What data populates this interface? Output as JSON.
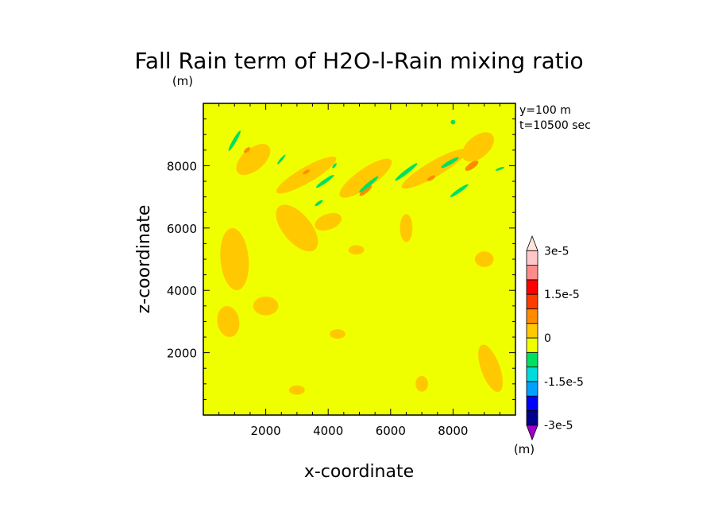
{
  "chart_data": {
    "type": "heatmap",
    "title": "Fall Rain term of H2O-l-Rain mixing ratio",
    "title_unit": "(m)",
    "xlabel": "x-coordinate",
    "ylabel": "z-coordinate",
    "xlim": [
      0,
      10000
    ],
    "ylim": [
      0,
      10000
    ],
    "x_ticks": [
      2000,
      4000,
      6000,
      8000
    ],
    "y_ticks": [
      2000,
      4000,
      6000,
      8000
    ],
    "x_tick_labels": [
      "2000",
      "4000",
      "6000",
      "8000"
    ],
    "y_tick_labels": [
      "2000",
      "4000",
      "6000",
      "8000"
    ],
    "annotations": [
      "y=100  m",
      "t=10500 sec"
    ],
    "colorbar": {
      "unit": "(m)",
      "labels": [
        "3e-5",
        "1.5e-5",
        "0",
        "-1.5e-5",
        "-3e-5"
      ],
      "levels": [
        -3e-05,
        -2.5e-05,
        -2e-05,
        -1.5e-05,
        -1e-05,
        -5e-06,
        0,
        5e-06,
        1e-05,
        1.5e-05,
        2e-05,
        2.5e-05,
        3e-05
      ],
      "colors": [
        "#a000c8",
        "#00008c",
        "#0000ff",
        "#00a0ff",
        "#00dcdc",
        "#00e060",
        "#f0ff00",
        "#ffc800",
        "#ff8c00",
        "#ff3c00",
        "#ff0000",
        "#ff8c8c",
        "#ffc8c8",
        "#ffe6dc"
      ]
    },
    "background_color": "#f0ff00",
    "positive_region_color": "#ffc800",
    "negative_band_color": "#00e060",
    "features": {
      "positive_regions": [
        {
          "x": 1600,
          "z": 8200,
          "dx": 1300,
          "dz": 700,
          "angle": 40,
          "value": 5e-06
        },
        {
          "x": 3300,
          "z": 7700,
          "dx": 2200,
          "dz": 500,
          "angle": 30,
          "value": 5e-06
        },
        {
          "x": 5200,
          "z": 7600,
          "dx": 2000,
          "dz": 600,
          "angle": 35,
          "value": 5e-06
        },
        {
          "x": 7400,
          "z": 7900,
          "dx": 2400,
          "dz": 500,
          "angle": 30,
          "value": 5e-06
        },
        {
          "x": 8800,
          "z": 8600,
          "dx": 1200,
          "dz": 700,
          "angle": 40,
          "value": 5e-06
        },
        {
          "x": 1000,
          "z": 5000,
          "dx": 900,
          "dz": 2000,
          "angle": 5,
          "value": 5e-06
        },
        {
          "x": 800,
          "z": 3000,
          "dx": 700,
          "dz": 1000,
          "angle": 10,
          "value": 5e-06
        },
        {
          "x": 2000,
          "z": 3500,
          "dx": 800,
          "dz": 600,
          "angle": 0,
          "value": 5e-06
        },
        {
          "x": 3000,
          "z": 6000,
          "dx": 900,
          "dz": 1800,
          "angle": 40,
          "value": 5e-06
        },
        {
          "x": 4000,
          "z": 6200,
          "dx": 900,
          "dz": 500,
          "angle": 20,
          "value": 5e-06
        },
        {
          "x": 6500,
          "z": 6000,
          "dx": 400,
          "dz": 900,
          "angle": 0,
          "value": 5e-06
        },
        {
          "x": 9200,
          "z": 1500,
          "dx": 600,
          "dz": 1600,
          "angle": 20,
          "value": 5e-06
        },
        {
          "x": 9000,
          "z": 5000,
          "dx": 600,
          "dz": 500,
          "angle": 0,
          "value": 5e-06
        },
        {
          "x": 4900,
          "z": 5300,
          "dx": 500,
          "dz": 300,
          "angle": 0,
          "value": 5e-06
        },
        {
          "x": 4300,
          "z": 2600,
          "dx": 500,
          "dz": 300,
          "angle": 0,
          "value": 5e-06
        },
        {
          "x": 7000,
          "z": 1000,
          "dx": 400,
          "dz": 500,
          "angle": 0,
          "value": 5e-06
        },
        {
          "x": 3000,
          "z": 800,
          "dx": 500,
          "dz": 300,
          "angle": 0,
          "value": 5e-06
        }
      ],
      "strong_positive_regions": [
        {
          "x": 8600,
          "z": 8000,
          "dx": 500,
          "dz": 200,
          "angle": 35,
          "value": 1.5e-05
        },
        {
          "x": 5200,
          "z": 7200,
          "dx": 500,
          "dz": 150,
          "angle": 40,
          "value": 1e-05
        },
        {
          "x": 1400,
          "z": 8500,
          "dx": 250,
          "dz": 120,
          "angle": 40,
          "value": 1e-05
        },
        {
          "x": 7300,
          "z": 7600,
          "dx": 300,
          "dz": 120,
          "angle": 30,
          "value": 1e-05
        },
        {
          "x": 3300,
          "z": 7800,
          "dx": 250,
          "dz": 100,
          "angle": 30,
          "value": 1e-05
        }
      ],
      "negative_bands": [
        {
          "x": 1000,
          "z": 8800,
          "dx": 750,
          "dz": 120,
          "angle": 60,
          "value": -5e-06
        },
        {
          "x": 2500,
          "z": 8200,
          "dx": 400,
          "dz": 80,
          "angle": 50,
          "value": -5e-06
        },
        {
          "x": 3900,
          "z": 7500,
          "dx": 700,
          "dz": 120,
          "angle": 35,
          "value": -5e-06
        },
        {
          "x": 3700,
          "z": 6800,
          "dx": 300,
          "dz": 100,
          "angle": 35,
          "value": -5e-06
        },
        {
          "x": 4200,
          "z": 8000,
          "dx": 200,
          "dz": 80,
          "angle": 50,
          "value": -5e-06
        },
        {
          "x": 5300,
          "z": 7400,
          "dx": 800,
          "dz": 120,
          "angle": 40,
          "value": -5e-06
        },
        {
          "x": 6500,
          "z": 7800,
          "dx": 900,
          "dz": 130,
          "angle": 38,
          "value": -5e-06
        },
        {
          "x": 7900,
          "z": 8100,
          "dx": 650,
          "dz": 130,
          "angle": 30,
          "value": -5e-06
        },
        {
          "x": 8200,
          "z": 7200,
          "dx": 700,
          "dz": 120,
          "angle": 35,
          "value": -5e-06
        },
        {
          "x": 9500,
          "z": 7900,
          "dx": 300,
          "dz": 80,
          "angle": 20,
          "value": -5e-06
        },
        {
          "x": 8000,
          "z": 9400,
          "dx": 150,
          "dz": 150,
          "angle": 0,
          "value": -5e-06
        }
      ]
    }
  }
}
